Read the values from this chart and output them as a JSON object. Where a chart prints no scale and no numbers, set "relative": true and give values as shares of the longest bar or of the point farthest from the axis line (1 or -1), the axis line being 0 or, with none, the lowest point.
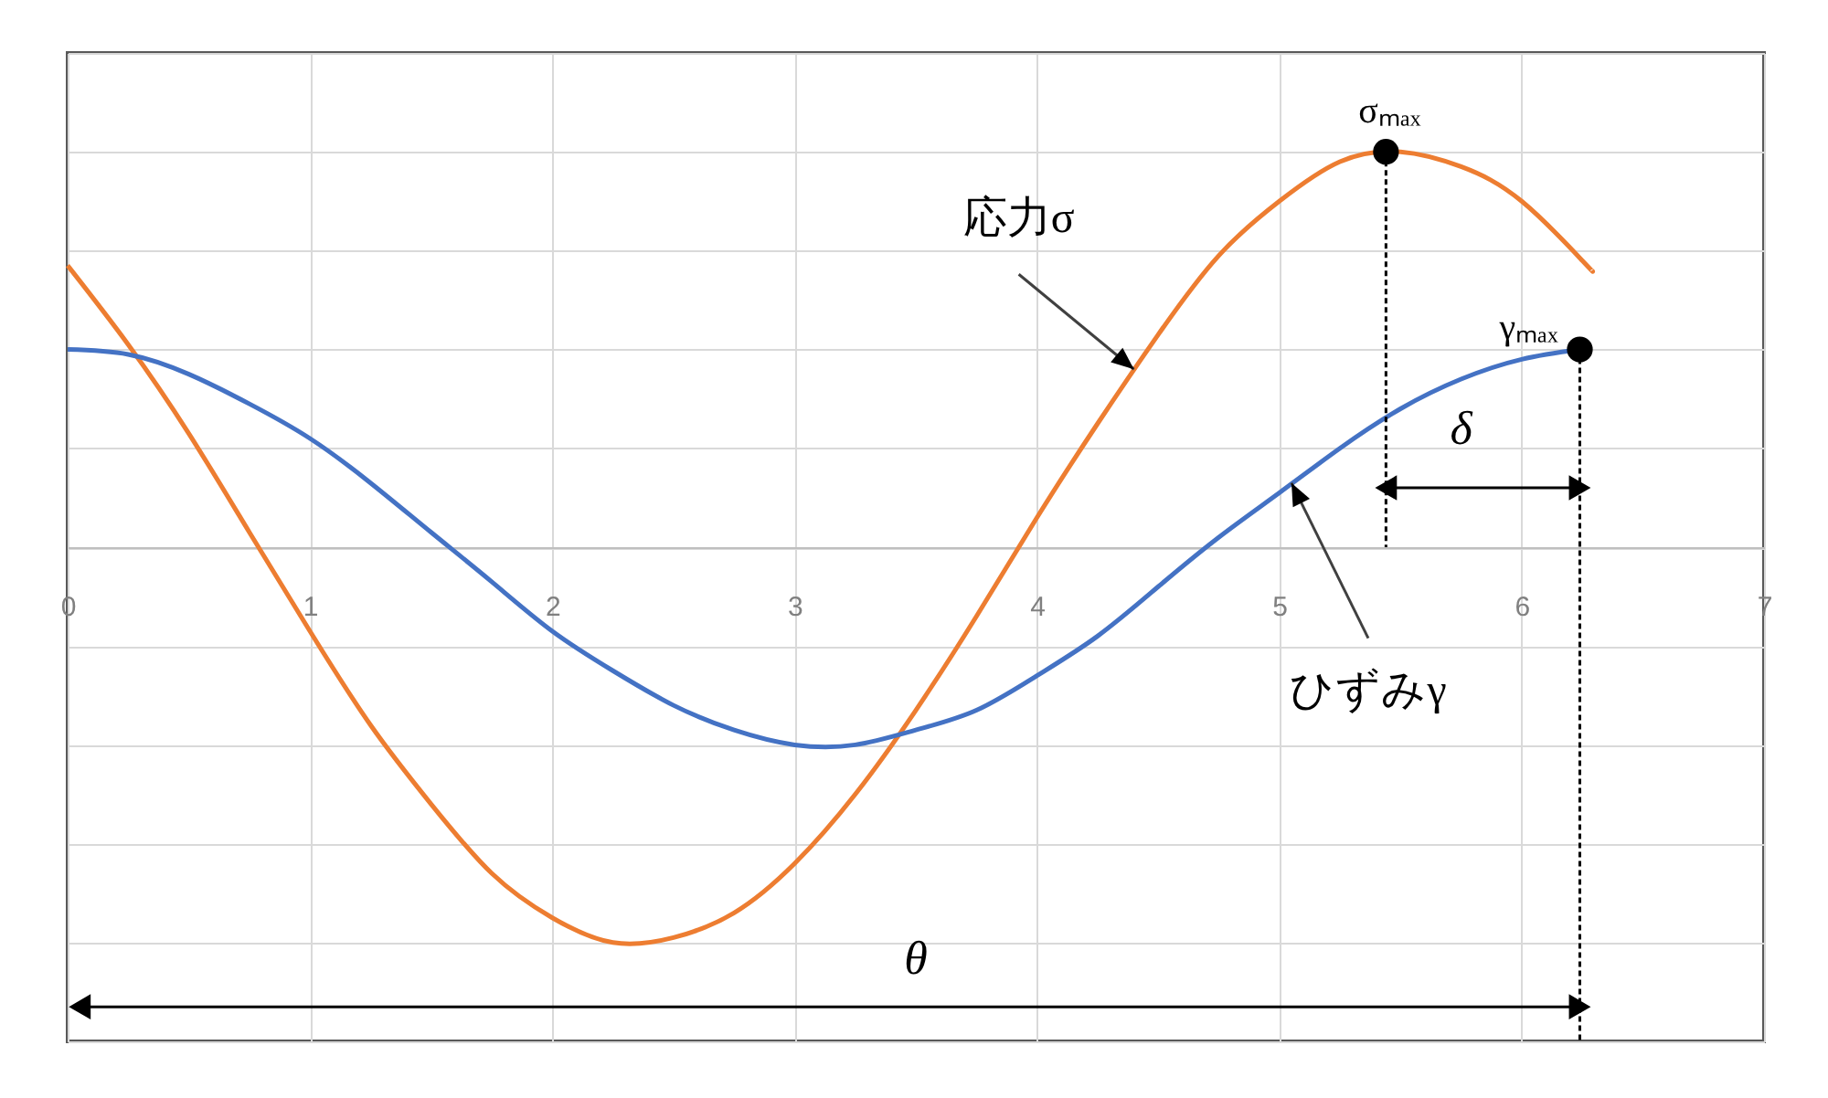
{
  "chart_data": {
    "type": "line",
    "relative": true,
    "xlim": [
      0,
      7
    ],
    "xticks": [
      0,
      1,
      2,
      3,
      4,
      5,
      6,
      7
    ],
    "grid": true,
    "series": [
      {
        "color": "#ed7d31",
        "x": [
          0,
          0.25,
          0.5,
          0.75,
          1,
          1.25,
          1.5,
          1.75,
          2,
          2.25,
          2.5,
          2.75,
          3,
          3.25,
          3.5,
          3.75,
          4,
          4.25,
          4.5,
          4.75,
          5,
          5.25,
          5.5,
          5.75,
          6,
          6.25,
          6.29
        ],
        "values": [
          0.57,
          0.41,
          0.23,
          0.03,
          -0.17,
          -0.36,
          -0.52,
          -0.66,
          -0.75,
          -0.8,
          -0.79,
          -0.74,
          -0.64,
          -0.5,
          -0.33,
          -0.14,
          0.06,
          0.25,
          0.43,
          0.59,
          0.7,
          0.78,
          0.8,
          0.77,
          0.7,
          0.58,
          0.56
        ]
      },
      {
        "color": "#4472c4",
        "x": [
          0,
          0.25,
          0.5,
          0.75,
          1,
          1.25,
          1.5,
          1.75,
          2,
          2.25,
          2.5,
          2.75,
          3,
          3.25,
          3.5,
          3.75,
          4,
          4.25,
          4.5,
          4.75,
          5,
          5.25,
          5.5,
          5.75,
          6,
          6.24
        ],
        "values": [
          0.4,
          0.39,
          0.35,
          0.29,
          0.22,
          0.13,
          0.03,
          -0.07,
          -0.17,
          -0.25,
          -0.32,
          -0.37,
          -0.4,
          -0.4,
          -0.37,
          -0.33,
          -0.26,
          -0.18,
          -0.08,
          0.02,
          0.11,
          0.2,
          0.28,
          0.34,
          0.38,
          0.4
        ]
      },
      {
        "type": "line",
        "color": "#000000",
        "line_style": "dotted",
        "x": [
          5.44,
          5.44
        ],
        "values": [
          0.8,
          0
        ]
      },
      {
        "type": "line",
        "color": "#000000",
        "line_style": "dotted",
        "x": [
          6.24,
          6.24
        ],
        "values": [
          0.4,
          -1
        ]
      },
      {
        "type": "line",
        "color": "#000000",
        "marker": "triangle",
        "x": [
          5.44,
          6.24
        ],
        "values": [
          0.12,
          0.12
        ]
      },
      {
        "type": "line",
        "color": "#000000",
        "marker": "triangle",
        "x": [
          0.05,
          6.24
        ],
        "values": [
          -0.93,
          -0.93
        ]
      },
      {
        "type": "scatter",
        "color": "#000000",
        "marker": "circle",
        "x": [
          5.44,
          6.24
        ],
        "values": [
          0.8,
          0.4
        ]
      }
    ],
    "annotations": [
      {
        "text": "応力σ",
        "x": 4.4,
        "y": 0.36
      },
      {
        "text": "ひずみγ",
        "x": 5.05,
        "y": 0.13
      },
      {
        "text": "σₘₐₓ",
        "x": 5.44,
        "y": 0.8
      },
      {
        "text": "γₘₐₓ",
        "x": 6.24,
        "y": 0.4
      },
      {
        "text": "δ",
        "x": 5.75,
        "y": 0.12
      },
      {
        "text": "θ",
        "x": 3.5,
        "y": -0.93
      }
    ]
  }
}
